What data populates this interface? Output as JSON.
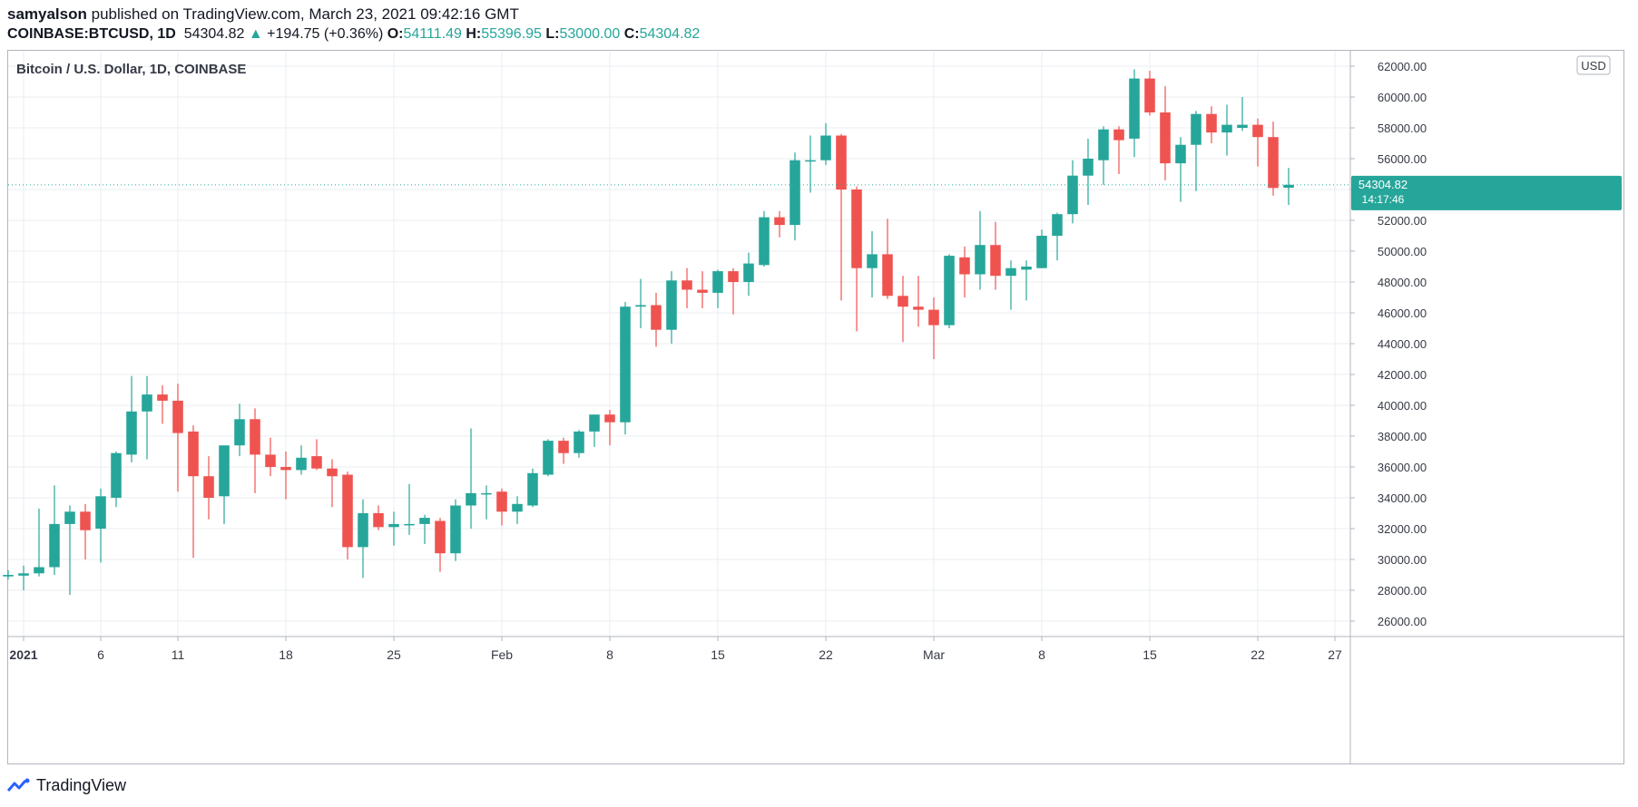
{
  "header": {
    "user": "samyalson",
    "published": " published on TradingView.com, March 23, 2021 09:42:16 GMT",
    "symbol": "COINBASE:BTCUSD, 1D",
    "last": "54304.82",
    "change_arrow": "▲",
    "change": "+194.75 (+0.36%)",
    "o_label": "O:",
    "o_val": "54111.49",
    "h_label": "H:",
    "h_val": "55396.95",
    "l_label": "L:",
    "l_val": "53000.00",
    "c_label": "C:",
    "c_val": "54304.82"
  },
  "footer": {
    "brand": "TradingView",
    "icon": "tradingview-logo-icon"
  },
  "colors": {
    "up": "#26a69a",
    "down": "#ef5350",
    "grid": "#e9ecf2",
    "text": "#131722",
    "axis_text": "#363a45"
  },
  "chart_data": {
    "type": "candlestick",
    "title": "Bitcoin / U.S. Dollar, 1D, COINBASE",
    "currency": "USD",
    "ylim": [
      25000,
      63000
    ],
    "y_ticks": [
      "26000.00",
      "28000.00",
      "30000.00",
      "32000.00",
      "34000.00",
      "36000.00",
      "38000.00",
      "40000.00",
      "42000.00",
      "44000.00",
      "46000.00",
      "48000.00",
      "50000.00",
      "52000.00",
      "54000.00",
      "56000.00",
      "58000.00",
      "60000.00",
      "62000.00"
    ],
    "x_ticks": [
      {
        "date": "2021-01-01",
        "label": "2021",
        "bold": true
      },
      {
        "date": "2021-01-06",
        "label": "6"
      },
      {
        "date": "2021-01-11",
        "label": "11"
      },
      {
        "date": "2021-01-18",
        "label": "18"
      },
      {
        "date": "2021-01-25",
        "label": "25"
      },
      {
        "date": "2021-02-01",
        "label": "Feb"
      },
      {
        "date": "2021-02-08",
        "label": "8"
      },
      {
        "date": "2021-02-15",
        "label": "15"
      },
      {
        "date": "2021-02-22",
        "label": "22"
      },
      {
        "date": "2021-03-01",
        "label": "Mar"
      },
      {
        "date": "2021-03-08",
        "label": "8"
      },
      {
        "date": "2021-03-15",
        "label": "15"
      },
      {
        "date": "2021-03-22",
        "label": "22"
      },
      {
        "date": "2021-03-27",
        "label": "27"
      }
    ],
    "x_range": [
      "2020-12-31",
      "2021-03-28"
    ],
    "last_price": {
      "value": 54304.82,
      "label": "54304.82",
      "countdown": "14:17:46"
    },
    "candles": [
      {
        "d": "2020-12-31",
        "o": 28900,
        "h": 29300,
        "l": 28700,
        "c": 29000
      },
      {
        "d": "2021-01-01",
        "o": 28950,
        "h": 29600,
        "l": 28000,
        "c": 29100
      },
      {
        "d": "2021-01-02",
        "o": 29100,
        "h": 33300,
        "l": 28900,
        "c": 29500
      },
      {
        "d": "2021-01-03",
        "o": 29500,
        "h": 34800,
        "l": 29000,
        "c": 32300
      },
      {
        "d": "2021-01-04",
        "o": 32300,
        "h": 33500,
        "l": 27700,
        "c": 33100
      },
      {
        "d": "2021-01-05",
        "o": 33100,
        "h": 33600,
        "l": 30000,
        "c": 31900
      },
      {
        "d": "2021-01-06",
        "o": 32000,
        "h": 34600,
        "l": 29800,
        "c": 34100
      },
      {
        "d": "2021-01-07",
        "o": 34000,
        "h": 37000,
        "l": 33400,
        "c": 36900
      },
      {
        "d": "2021-01-08",
        "o": 36800,
        "h": 41900,
        "l": 36300,
        "c": 39600
      },
      {
        "d": "2021-01-09",
        "o": 39600,
        "h": 41900,
        "l": 36500,
        "c": 40700
      },
      {
        "d": "2021-01-10",
        "o": 40700,
        "h": 41300,
        "l": 38800,
        "c": 40300
      },
      {
        "d": "2021-01-11",
        "o": 40300,
        "h": 41400,
        "l": 34400,
        "c": 38200
      },
      {
        "d": "2021-01-12",
        "o": 38300,
        "h": 38700,
        "l": 30100,
        "c": 35400
      },
      {
        "d": "2021-01-13",
        "o": 35400,
        "h": 36700,
        "l": 32600,
        "c": 34000
      },
      {
        "d": "2021-01-14",
        "o": 34100,
        "h": 37400,
        "l": 32300,
        "c": 37400
      },
      {
        "d": "2021-01-15",
        "o": 37400,
        "h": 40100,
        "l": 36700,
        "c": 39100
      },
      {
        "d": "2021-01-16",
        "o": 39100,
        "h": 39800,
        "l": 34300,
        "c": 36800
      },
      {
        "d": "2021-01-17",
        "o": 36800,
        "h": 37900,
        "l": 35400,
        "c": 36000
      },
      {
        "d": "2021-01-18",
        "o": 36000,
        "h": 37000,
        "l": 33900,
        "c": 35800
      },
      {
        "d": "2021-01-19",
        "o": 35800,
        "h": 37400,
        "l": 35500,
        "c": 36600
      },
      {
        "d": "2021-01-20",
        "o": 36700,
        "h": 37800,
        "l": 35800,
        "c": 35900
      },
      {
        "d": "2021-01-21",
        "o": 35900,
        "h": 36500,
        "l": 33400,
        "c": 35400
      },
      {
        "d": "2021-01-22",
        "o": 35500,
        "h": 35700,
        "l": 30000,
        "c": 30800
      },
      {
        "d": "2021-01-23",
        "o": 30800,
        "h": 33900,
        "l": 28800,
        "c": 33000
      },
      {
        "d": "2021-01-24",
        "o": 33000,
        "h": 33500,
        "l": 31900,
        "c": 32100
      },
      {
        "d": "2021-01-25",
        "o": 32100,
        "h": 33100,
        "l": 30900,
        "c": 32300
      },
      {
        "d": "2021-01-26",
        "o": 32300,
        "h": 34900,
        "l": 31600,
        "c": 32300
      },
      {
        "d": "2021-01-27",
        "o": 32300,
        "h": 32900,
        "l": 31000,
        "c": 32700
      },
      {
        "d": "2021-01-28",
        "o": 32500,
        "h": 32700,
        "l": 29200,
        "c": 30400
      },
      {
        "d": "2021-01-29",
        "o": 30400,
        "h": 33900,
        "l": 29900,
        "c": 33500
      },
      {
        "d": "2021-01-30",
        "o": 33500,
        "h": 38500,
        "l": 32000,
        "c": 34300
      },
      {
        "d": "2021-01-31",
        "o": 34300,
        "h": 34800,
        "l": 32600,
        "c": 34300
      },
      {
        "d": "2021-02-01",
        "o": 34400,
        "h": 34600,
        "l": 32200,
        "c": 33100
      },
      {
        "d": "2021-02-02",
        "o": 33100,
        "h": 34100,
        "l": 32300,
        "c": 33600
      },
      {
        "d": "2021-02-03",
        "o": 33500,
        "h": 35900,
        "l": 33400,
        "c": 35600
      },
      {
        "d": "2021-02-04",
        "o": 35500,
        "h": 37800,
        "l": 35400,
        "c": 37700
      },
      {
        "d": "2021-02-05",
        "o": 37700,
        "h": 37900,
        "l": 36200,
        "c": 36900
      },
      {
        "d": "2021-02-06",
        "o": 36900,
        "h": 38400,
        "l": 36600,
        "c": 38300
      },
      {
        "d": "2021-02-07",
        "o": 38300,
        "h": 39400,
        "l": 37300,
        "c": 39400
      },
      {
        "d": "2021-02-08",
        "o": 39400,
        "h": 39700,
        "l": 37400,
        "c": 38900
      },
      {
        "d": "2021-02-09",
        "o": 38900,
        "h": 46700,
        "l": 38100,
        "c": 46400
      },
      {
        "d": "2021-02-10",
        "o": 46400,
        "h": 48200,
        "l": 45000,
        "c": 46500
      },
      {
        "d": "2021-02-11",
        "o": 46500,
        "h": 47300,
        "l": 43800,
        "c": 44900
      },
      {
        "d": "2021-02-12",
        "o": 44900,
        "h": 48700,
        "l": 44000,
        "c": 48100
      },
      {
        "d": "2021-02-13",
        "o": 48100,
        "h": 48900,
        "l": 46300,
        "c": 47500
      },
      {
        "d": "2021-02-14",
        "o": 47500,
        "h": 48700,
        "l": 46300,
        "c": 47300
      },
      {
        "d": "2021-02-15",
        "o": 47300,
        "h": 48800,
        "l": 46300,
        "c": 48700
      },
      {
        "d": "2021-02-16",
        "o": 48700,
        "h": 48900,
        "l": 45900,
        "c": 48000
      },
      {
        "d": "2021-02-17",
        "o": 48000,
        "h": 49900,
        "l": 47100,
        "c": 49200
      },
      {
        "d": "2021-02-18",
        "o": 49100,
        "h": 52600,
        "l": 49000,
        "c": 52200
      },
      {
        "d": "2021-02-19",
        "o": 52200,
        "h": 52600,
        "l": 50900,
        "c": 51700
      },
      {
        "d": "2021-02-20",
        "o": 51700,
        "h": 56400,
        "l": 50700,
        "c": 55900
      },
      {
        "d": "2021-02-21",
        "o": 55900,
        "h": 57500,
        "l": 53800,
        "c": 55900
      },
      {
        "d": "2021-02-22",
        "o": 55900,
        "h": 58300,
        "l": 55600,
        "c": 57500
      },
      {
        "d": "2021-02-23",
        "o": 57500,
        "h": 57600,
        "l": 46800,
        "c": 54000
      },
      {
        "d": "2021-02-24",
        "o": 54000,
        "h": 54200,
        "l": 44800,
        "c": 48900
      },
      {
        "d": "2021-02-25",
        "o": 48900,
        "h": 51300,
        "l": 47000,
        "c": 49800
      },
      {
        "d": "2021-02-26",
        "o": 49800,
        "h": 52100,
        "l": 46900,
        "c": 47100
      },
      {
        "d": "2021-02-27",
        "o": 47100,
        "h": 48400,
        "l": 44100,
        "c": 46400
      },
      {
        "d": "2021-02-28",
        "o": 46400,
        "h": 48400,
        "l": 45100,
        "c": 46200
      },
      {
        "d": "2021-03-01",
        "o": 46200,
        "h": 47000,
        "l": 43000,
        "c": 45200
      },
      {
        "d": "2021-03-02",
        "o": 45200,
        "h": 49800,
        "l": 45000,
        "c": 49700
      },
      {
        "d": "2021-03-03",
        "o": 49600,
        "h": 50300,
        "l": 47000,
        "c": 48500
      },
      {
        "d": "2021-03-04",
        "o": 48500,
        "h": 52600,
        "l": 47500,
        "c": 50400
      },
      {
        "d": "2021-03-05",
        "o": 50400,
        "h": 51900,
        "l": 47500,
        "c": 48400
      },
      {
        "d": "2021-03-06",
        "o": 48400,
        "h": 49400,
        "l": 46200,
        "c": 48900
      },
      {
        "d": "2021-03-07",
        "o": 48800,
        "h": 49400,
        "l": 46800,
        "c": 49000
      },
      {
        "d": "2021-03-08",
        "o": 48900,
        "h": 51400,
        "l": 48900,
        "c": 51000
      },
      {
        "d": "2021-03-09",
        "o": 51000,
        "h": 52500,
        "l": 49400,
        "c": 52400
      },
      {
        "d": "2021-03-10",
        "o": 52400,
        "h": 55900,
        "l": 51800,
        "c": 54900
      },
      {
        "d": "2021-03-11",
        "o": 54900,
        "h": 57300,
        "l": 53000,
        "c": 56000
      },
      {
        "d": "2021-03-12",
        "o": 55900,
        "h": 58100,
        "l": 54300,
        "c": 57900
      },
      {
        "d": "2021-03-13",
        "o": 57900,
        "h": 58100,
        "l": 55000,
        "c": 57200
      },
      {
        "d": "2021-03-14",
        "o": 57300,
        "h": 61800,
        "l": 56100,
        "c": 61200
      },
      {
        "d": "2021-03-15",
        "o": 61200,
        "h": 61700,
        "l": 58800,
        "c": 59000
      },
      {
        "d": "2021-03-16",
        "o": 59000,
        "h": 60700,
        "l": 54600,
        "c": 55700
      },
      {
        "d": "2021-03-17",
        "o": 55700,
        "h": 57400,
        "l": 53200,
        "c": 56900
      },
      {
        "d": "2021-03-18",
        "o": 56900,
        "h": 59100,
        "l": 53900,
        "c": 58900
      },
      {
        "d": "2021-03-19",
        "o": 58900,
        "h": 59400,
        "l": 57000,
        "c": 57700
      },
      {
        "d": "2021-03-20",
        "o": 57700,
        "h": 59500,
        "l": 56200,
        "c": 58200
      },
      {
        "d": "2021-03-21",
        "o": 58000,
        "h": 60000,
        "l": 57800,
        "c": 58200
      },
      {
        "d": "2021-03-22",
        "o": 58200,
        "h": 58600,
        "l": 55500,
        "c": 57400
      },
      {
        "d": "2021-03-23",
        "o": 57400,
        "h": 58400,
        "l": 53600,
        "c": 54100
      },
      {
        "d": "2021-03-24",
        "o": 54111.49,
        "h": 55396.95,
        "l": 53000.0,
        "c": 54304.82
      }
    ]
  }
}
